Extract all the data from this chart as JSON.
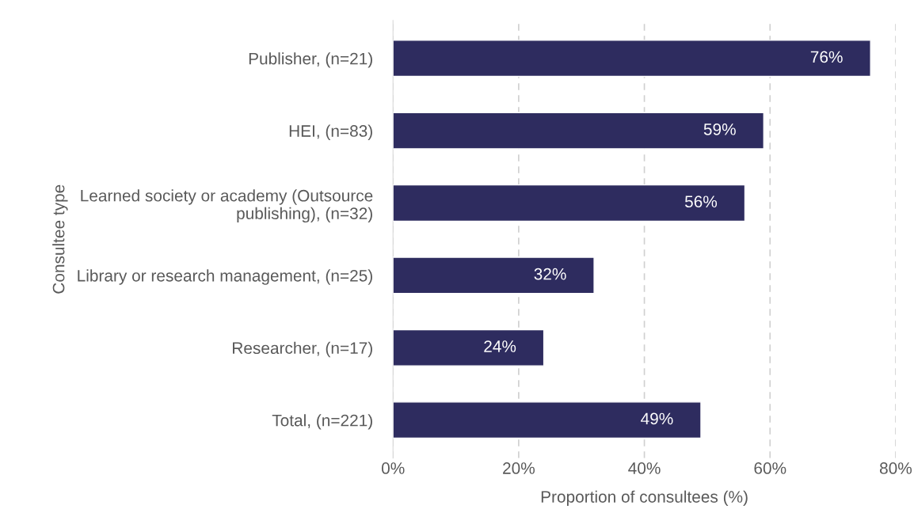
{
  "chart_data": {
    "type": "bar",
    "orientation": "horizontal",
    "xlabel": "Proportion of consultees (%)",
    "ylabel": "Consultee type",
    "categories": [
      "Publisher, (n=21)",
      "HEI, (n=83)",
      "Learned society or academy (Outsource\npublishing), (n=32)",
      "Library or research management, (n=25)",
      "Researcher, (n=17)",
      "Total, (n=221)"
    ],
    "values": [
      76,
      59,
      56,
      32,
      24,
      49
    ],
    "value_labels": [
      "76%",
      "59%",
      "56%",
      "32%",
      "24%",
      "49%"
    ],
    "color": "#2e2c5f",
    "xlim": [
      0,
      80
    ],
    "xticks": [
      {
        "value": 0,
        "label": "0%"
      },
      {
        "value": 20,
        "label": "20%"
      },
      {
        "value": 40,
        "label": "40%"
      },
      {
        "value": 60,
        "label": "60%"
      },
      {
        "value": 80,
        "label": "80%"
      }
    ],
    "grid": "x"
  }
}
